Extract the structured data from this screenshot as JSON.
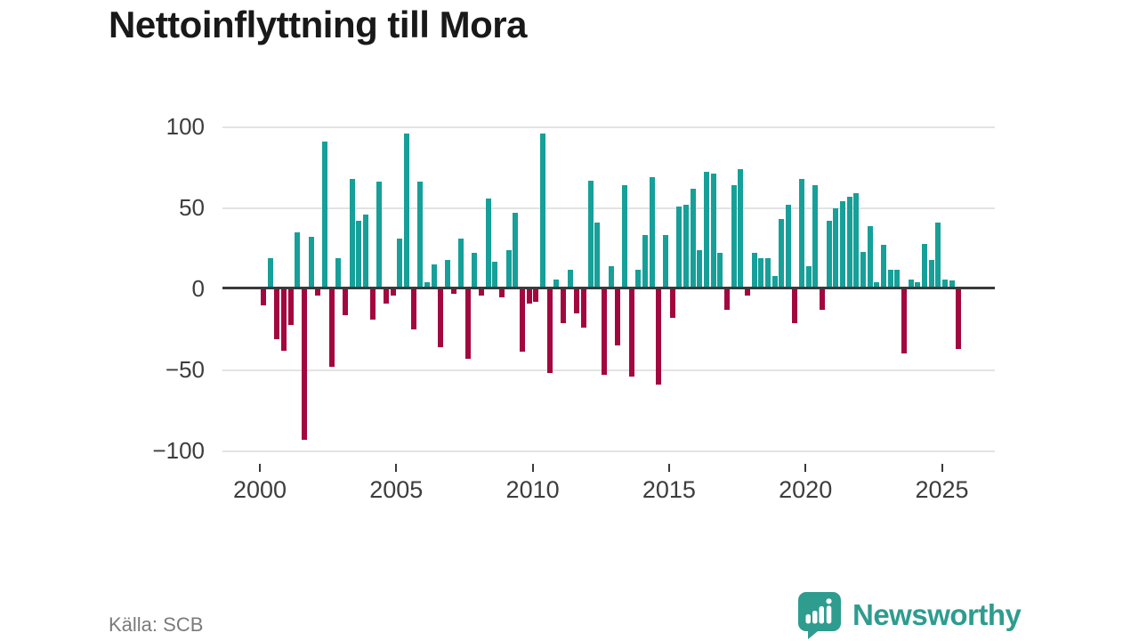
{
  "title": "Nettoinflyttning till Mora",
  "source": "Källa: SCB",
  "branding": {
    "logo_text": "Newsworthy",
    "logo_color": "#2e9c8f"
  },
  "colors": {
    "positive": "#16a099",
    "negative": "#a30740",
    "axis": "#3a3a3a",
    "grid": "#e3e3e3",
    "title": "#191919",
    "tick_label": "#3d3d3d",
    "source_text": "#7b7b7b"
  },
  "chart_data": {
    "type": "bar",
    "title": "Nettoinflyttning till Mora",
    "frequency": "quarterly",
    "start_year": 2000,
    "start_quarter": 1,
    "end_year": 2025,
    "end_quarter": 3,
    "values": [
      -10,
      19,
      -31,
      -38,
      -22,
      35,
      -93,
      32,
      -4,
      91,
      -48,
      19,
      -16,
      68,
      42,
      46,
      -19,
      66,
      -9,
      -4,
      31,
      96,
      -25,
      66,
      4,
      15,
      -36,
      18,
      -3,
      31,
      -43,
      22,
      -4,
      56,
      17,
      -5,
      24,
      47,
      -39,
      -9,
      -8,
      96,
      -52,
      6,
      -21,
      12,
      -15,
      -24,
      67,
      41,
      -53,
      14,
      -35,
      64,
      -54,
      12,
      33,
      69,
      -59,
      33,
      -18,
      51,
      52,
      62,
      24,
      72,
      71,
      22,
      -13,
      64,
      74,
      -4,
      22,
      19,
      19,
      8,
      43,
      52,
      -21,
      68,
      14,
      64,
      -13,
      42,
      50,
      54,
      57,
      59,
      23,
      39,
      4,
      27,
      12,
      12,
      -40,
      6,
      4,
      28,
      18,
      41,
      6,
      5,
      -37
    ],
    "ylim": [
      -100,
      100
    ],
    "grid": true,
    "legend": "none",
    "y_tick_values": [
      100,
      50,
      0,
      -50,
      -100
    ],
    "y_tick_labels": [
      "100",
      "50",
      "0",
      "−50",
      "−100"
    ],
    "x_tick_labels": [
      "2000",
      "2005",
      "2010",
      "2015",
      "2020",
      "2025"
    ]
  }
}
